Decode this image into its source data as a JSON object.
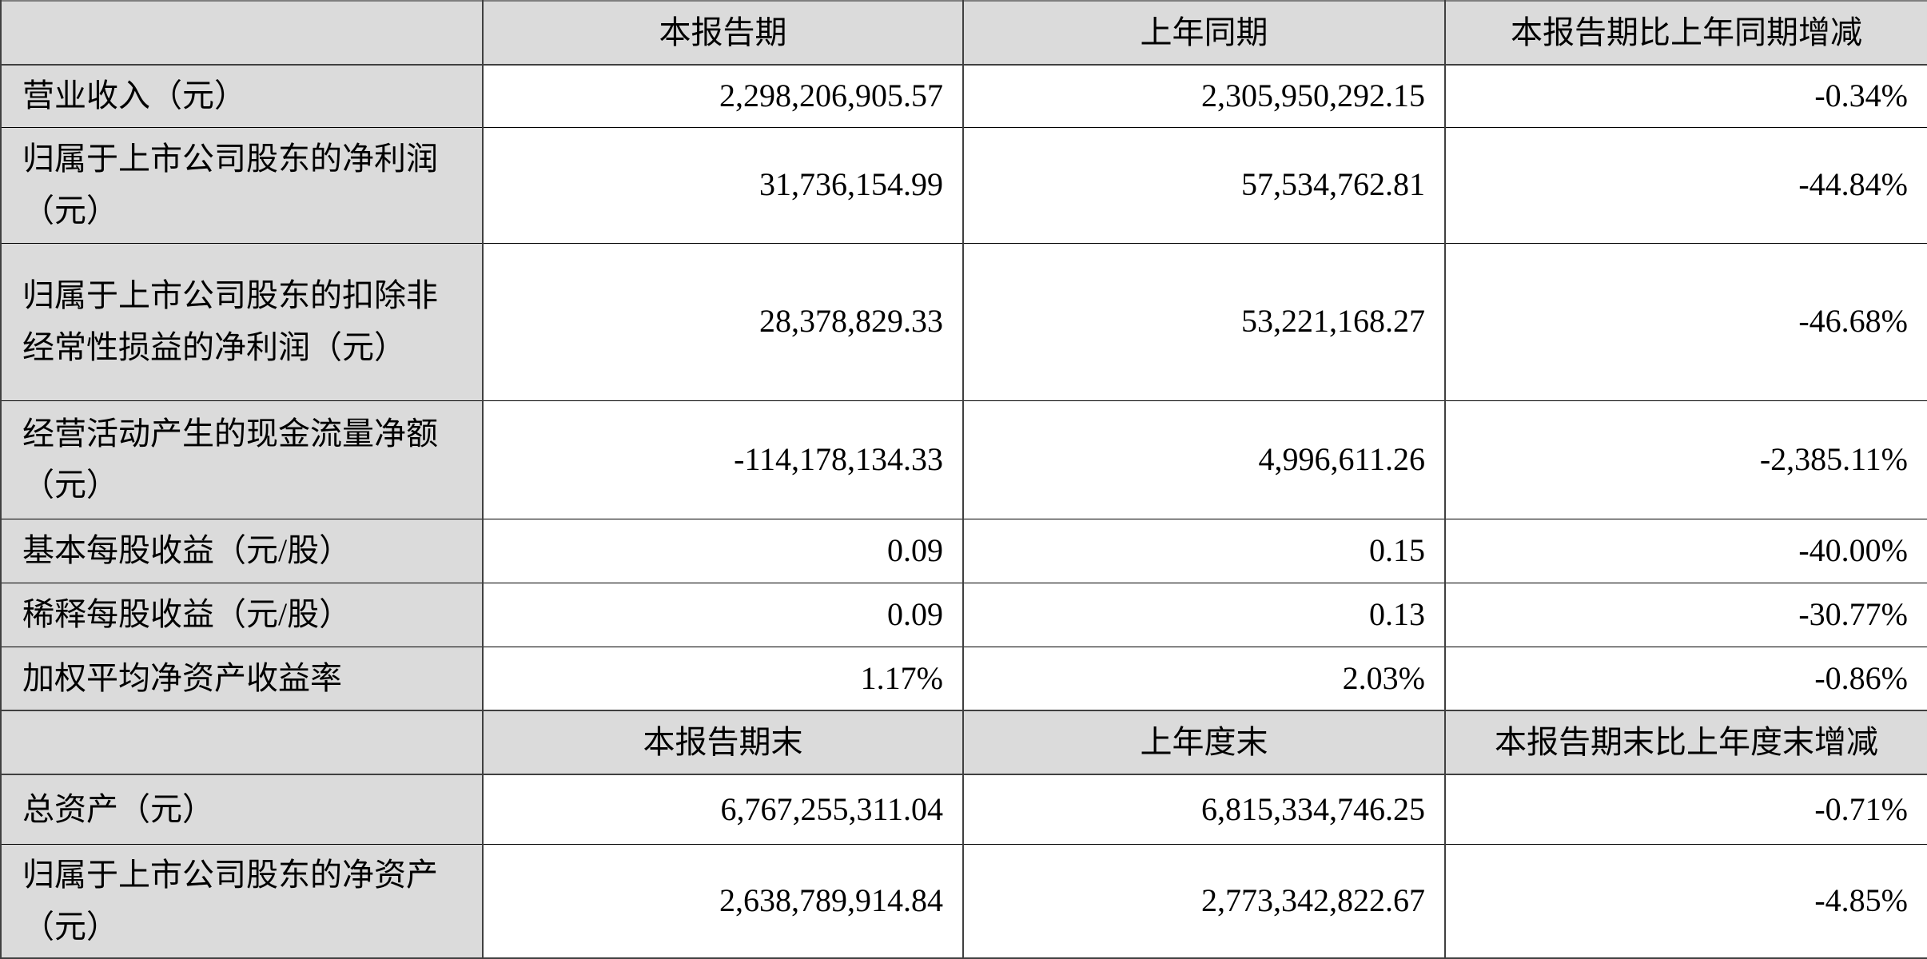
{
  "table": {
    "section1": {
      "corner": "",
      "columns": [
        "本报告期",
        "上年同期",
        "本报告期比上年同期增减"
      ],
      "rows": [
        {
          "label": "营业收入（元）",
          "current": "2,298,206,905.57",
          "prior": "2,305,950,292.15",
          "change": "-0.34%"
        },
        {
          "label": "归属于上市公司股东的净利润（元）",
          "current": "31,736,154.99",
          "prior": "57,534,762.81",
          "change": "-44.84%"
        },
        {
          "label": "归属于上市公司股东的扣除非经常性损益的净利润（元）",
          "current": "28,378,829.33",
          "prior": "53,221,168.27",
          "change": "-46.68%"
        },
        {
          "label": "经营活动产生的现金流量净额（元）",
          "current": "-114,178,134.33",
          "prior": "4,996,611.26",
          "change": "-2,385.11%"
        },
        {
          "label": "基本每股收益（元/股）",
          "current": "0.09",
          "prior": "0.15",
          "change": "-40.00%"
        },
        {
          "label": "稀释每股收益（元/股）",
          "current": "0.09",
          "prior": "0.13",
          "change": "-30.77%"
        },
        {
          "label": "加权平均净资产收益率",
          "current": "1.17%",
          "prior": "2.03%",
          "change": "-0.86%"
        }
      ]
    },
    "section2": {
      "corner": "",
      "columns": [
        "本报告期末",
        "上年度末",
        "本报告期末比上年度末增减"
      ],
      "rows": [
        {
          "label": "总资产（元）",
          "current": "6,767,255,311.04",
          "prior": "6,815,334,746.25",
          "change": "-0.71%"
        },
        {
          "label": "归属于上市公司股东的净资产（元）",
          "current": "2,638,789,914.84",
          "prior": "2,773,342,822.67",
          "change": "-4.85%"
        }
      ]
    }
  },
  "colors": {
    "cell_shading": "#dbdbdb",
    "value_background": "#ffffff",
    "grid_line_thick": "#404040",
    "grid_line_thin": "#000000",
    "top_edge": "#7f7f7f",
    "text": "#000000"
  }
}
